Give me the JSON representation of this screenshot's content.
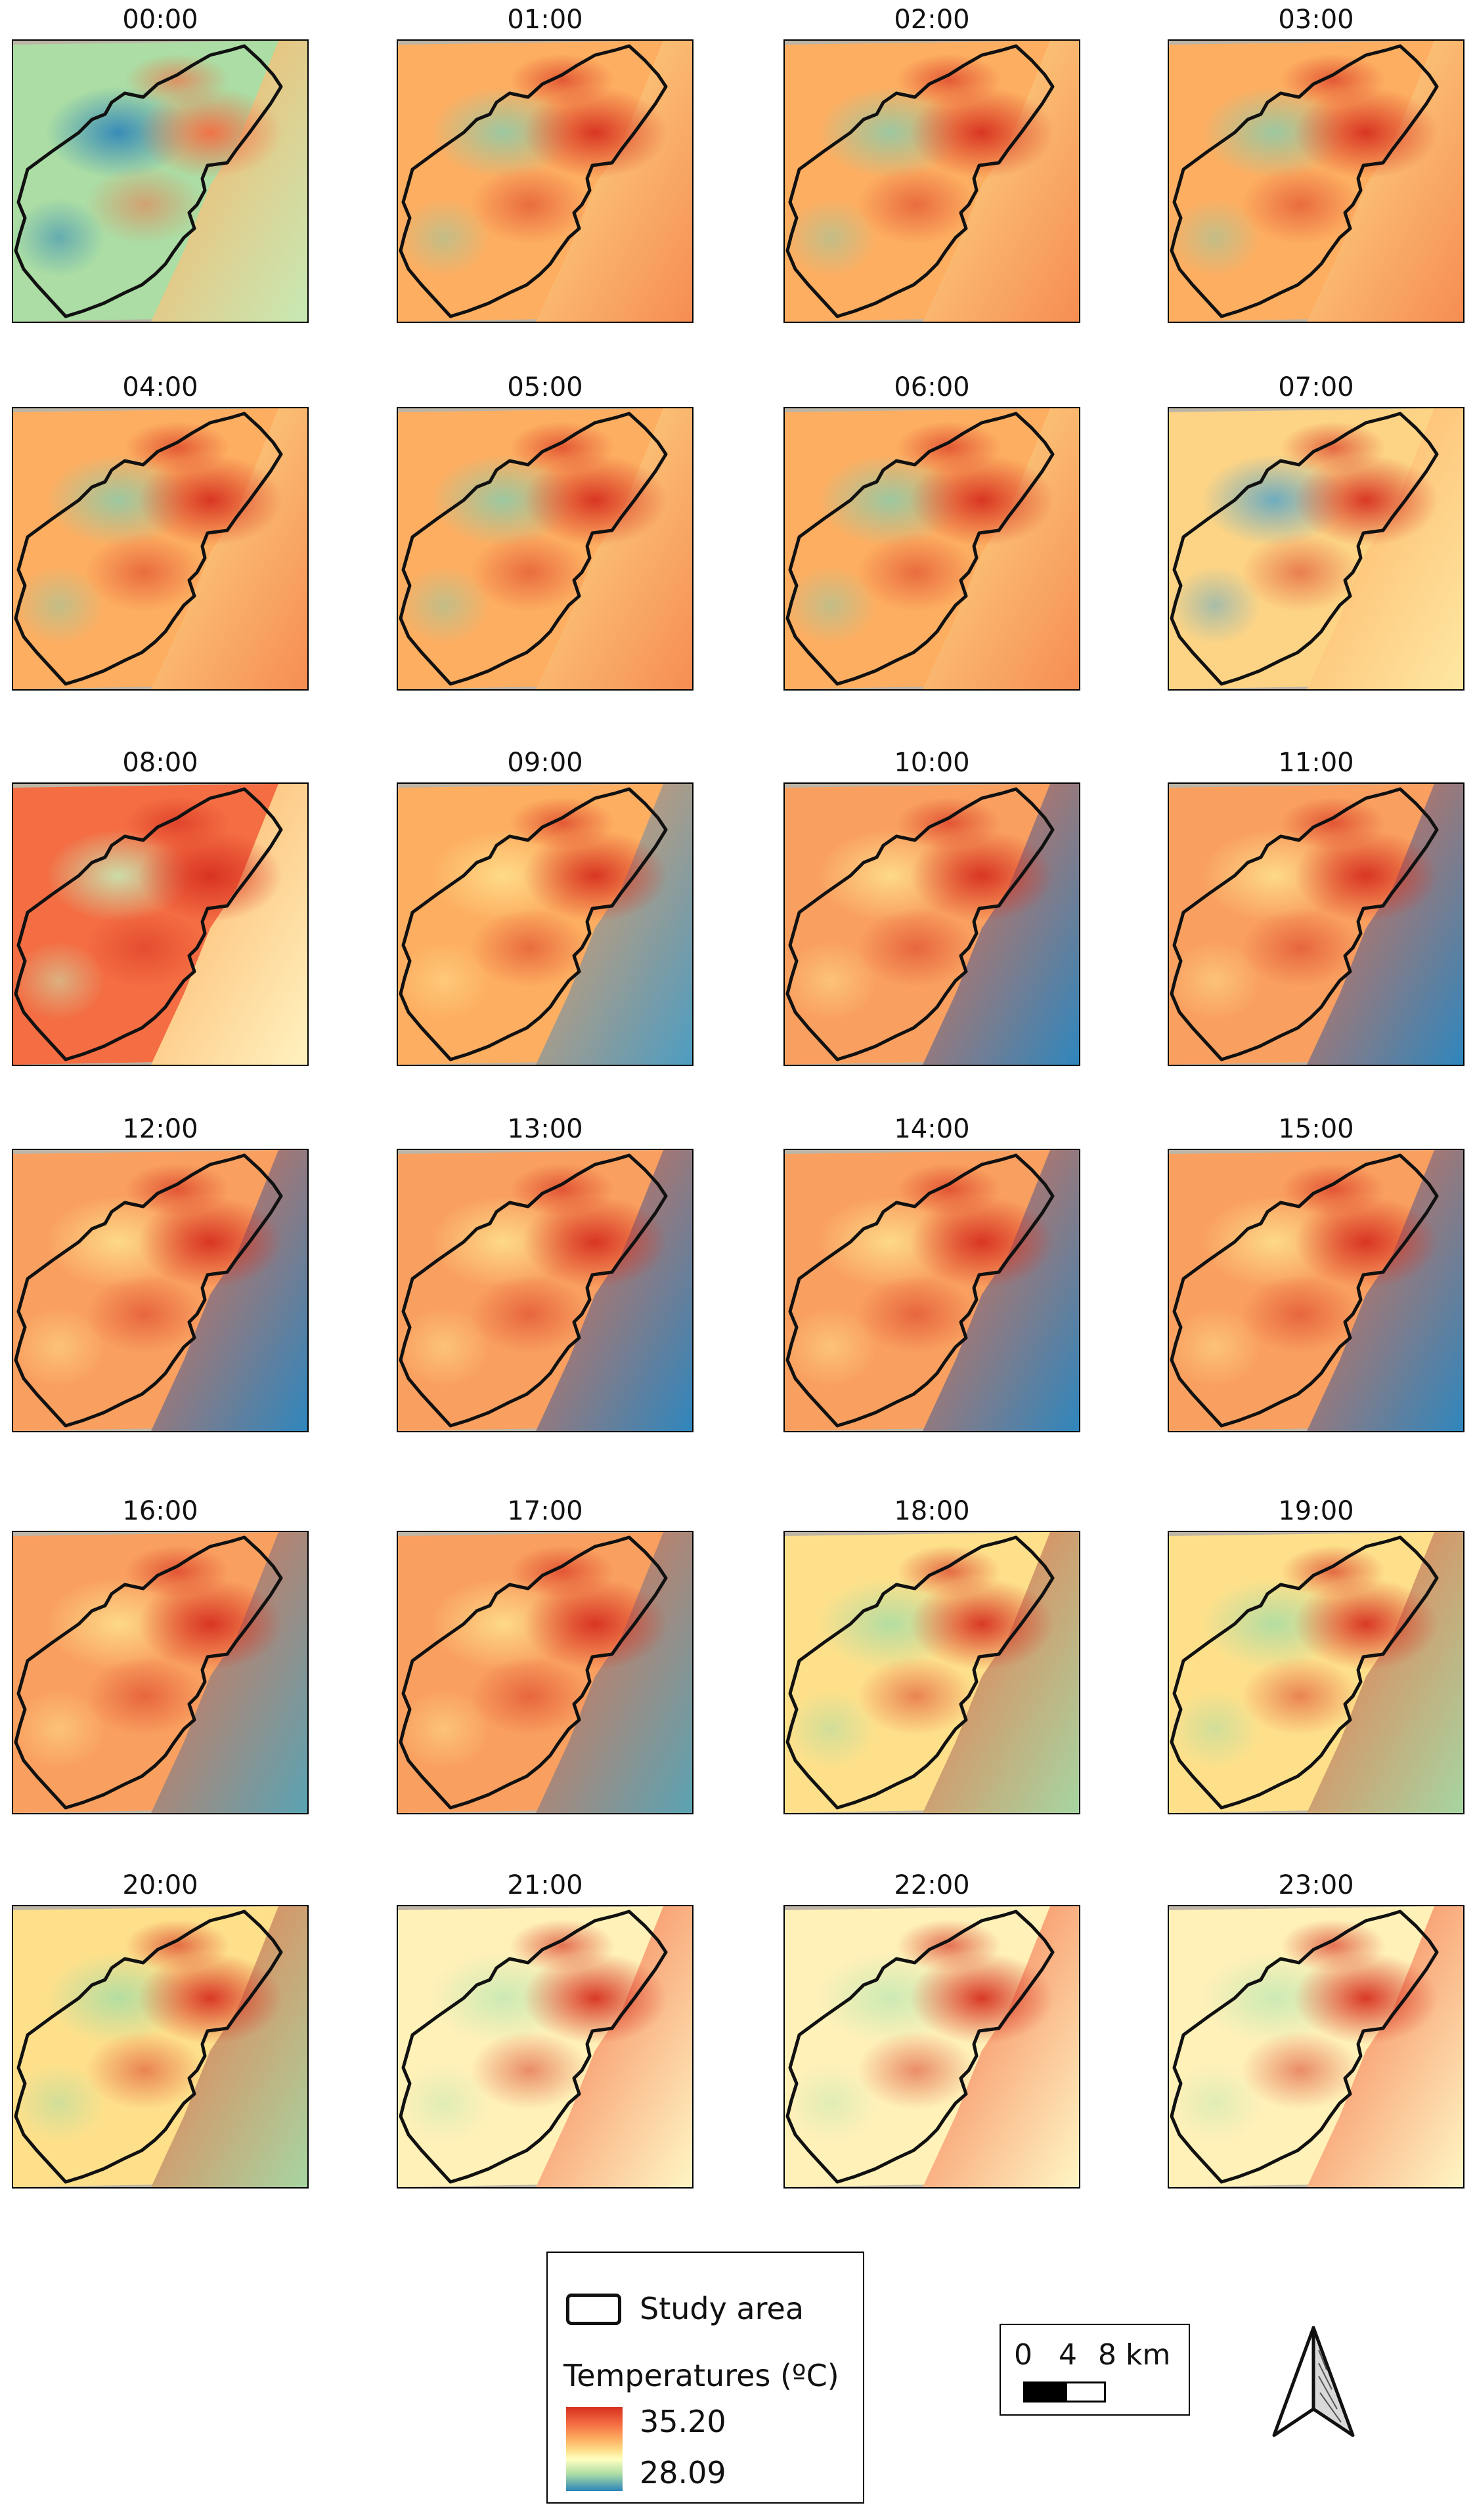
{
  "panels": [
    {
      "time": "00:00",
      "scheme": "night_cool"
    },
    {
      "time": "01:00",
      "scheme": "night_warm"
    },
    {
      "time": "02:00",
      "scheme": "night_warm"
    },
    {
      "time": "03:00",
      "scheme": "night_warm"
    },
    {
      "time": "04:00",
      "scheme": "night_warm"
    },
    {
      "time": "05:00",
      "scheme": "night_warm"
    },
    {
      "time": "06:00",
      "scheme": "night_warm"
    },
    {
      "time": "07:00",
      "scheme": "morning"
    },
    {
      "time": "08:00",
      "scheme": "eight"
    },
    {
      "time": "09:00",
      "scheme": "day_transition"
    },
    {
      "time": "10:00",
      "scheme": "day_sea"
    },
    {
      "time": "11:00",
      "scheme": "day_sea"
    },
    {
      "time": "12:00",
      "scheme": "day_sea"
    },
    {
      "time": "13:00",
      "scheme": "day_sea"
    },
    {
      "time": "14:00",
      "scheme": "day_sea"
    },
    {
      "time": "15:00",
      "scheme": "day_sea"
    },
    {
      "time": "16:00",
      "scheme": "day_sea_teal"
    },
    {
      "time": "17:00",
      "scheme": "day_sea_teal"
    },
    {
      "time": "18:00",
      "scheme": "evening_green"
    },
    {
      "time": "19:00",
      "scheme": "evening_green"
    },
    {
      "time": "20:00",
      "scheme": "evening_green"
    },
    {
      "time": "21:00",
      "scheme": "evening_yellow"
    },
    {
      "time": "22:00",
      "scheme": "evening_yellow"
    },
    {
      "time": "23:00",
      "scheme": "evening_yellow"
    }
  ],
  "legend": {
    "study_area_label": "Study area",
    "temperature_title": "Temperatures (ºC)",
    "max_value": "35.20",
    "min_value": "28.09",
    "colors": {
      "max": "#d7301f",
      "mid": "#ffffbf",
      "min": "#2b83ba"
    }
  },
  "scale_bar": {
    "labels": [
      "0",
      "4",
      "8 km"
    ]
  },
  "north_arrow_icon": "north-arrow-icon"
}
